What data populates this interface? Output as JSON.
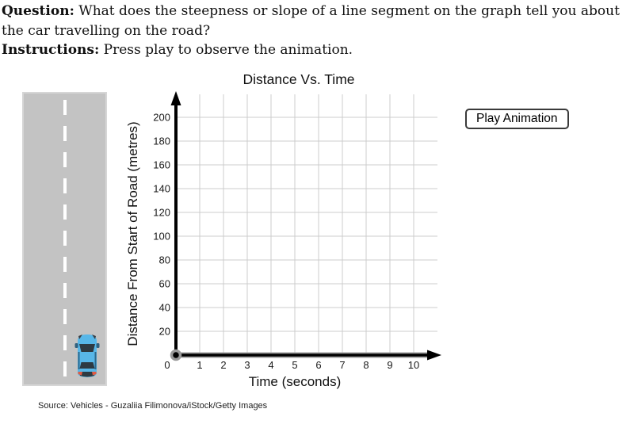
{
  "question": {
    "label": "Question:",
    "text": " What does the steepness or slope of a line segment on the graph tell you about the car travelling on the road?"
  },
  "instructions": {
    "label": "Instructions:",
    "text": " Press play to observe the animation."
  },
  "button": {
    "play_label": "Play Animation"
  },
  "source": {
    "text": "Source: Vehicles - Guzaliia Filimonova/iStock/Getty Images"
  },
  "road": {
    "surface_color": "#c3c3c3",
    "lane_line_color": "#ffffff",
    "car_color": "#58b7e8"
  },
  "chart_data": {
    "type": "scatter",
    "title": "Distance Vs. Time",
    "xlabel": "Time (seconds)",
    "ylabel": "Distance From Start of Road (metres)",
    "x_ticks": [
      0,
      1,
      2,
      3,
      4,
      5,
      6,
      7,
      8,
      9,
      10
    ],
    "y_ticks": [
      20,
      40,
      60,
      80,
      100,
      120,
      140,
      160,
      180,
      200
    ],
    "xlim": [
      0,
      11
    ],
    "ylim": [
      0,
      220
    ],
    "grid": true,
    "points": [
      {
        "x": 0,
        "y": 0
      }
    ],
    "grid_color": "#cccccc",
    "axis_color": "#000000",
    "axis_edge_color": "#999999",
    "tick_color": "#1a1a1a",
    "point_color": "#000000",
    "point_ring_color": "#999999"
  }
}
